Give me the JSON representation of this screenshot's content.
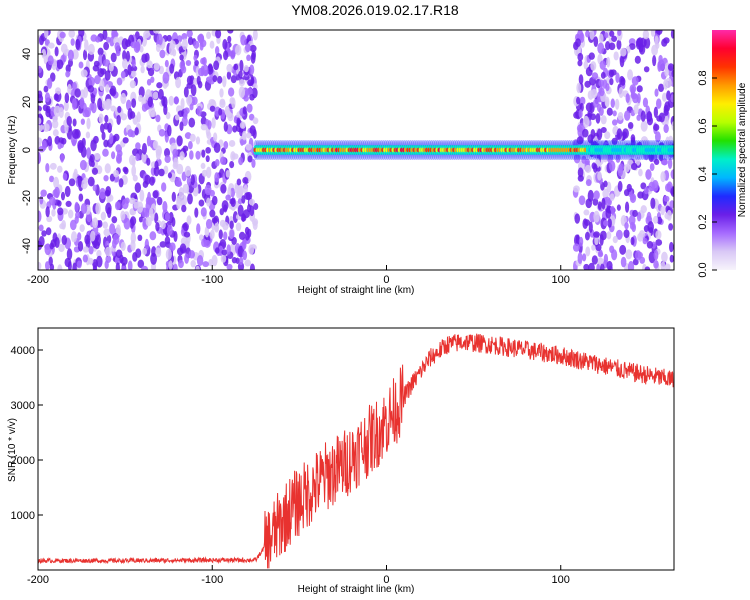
{
  "title": "YM08.2026.019.02.17.R18",
  "colors": {
    "snr_line": "#e8322f",
    "noise": "#7a2cf0",
    "colorbar": [
      "#f7f4fb",
      "#d9c8f6",
      "#a66bff",
      "#6a1fe8",
      "#1f2bff",
      "#00b7ff",
      "#00f0c8",
      "#22e000",
      "#b7ff00",
      "#ffee00",
      "#ff9b00",
      "#ff3300",
      "#ff0030",
      "#ff2aa8"
    ]
  },
  "chart_data": [
    {
      "type": "heatmap",
      "xlabel": "Height of straight line (km)",
      "ylabel": "Frequency (Hz)",
      "xlim": [
        -200,
        165
      ],
      "ylim": [
        -50,
        50
      ],
      "xticks": [
        -200,
        -100,
        0,
        100
      ],
      "yticks": [
        40,
        20,
        0,
        -20,
        -40
      ],
      "colorbar": {
        "label": "Normalized spectral amplitude",
        "range": [
          0,
          1
        ],
        "ticks": [
          "0.0",
          "0.2",
          "0.4",
          "0.6",
          "0.8"
        ]
      },
      "regions": [
        {
          "x_range": [
            -200,
            -75
          ],
          "description_level": "broadband noise",
          "amplitude": 0.12
        },
        {
          "x_range": [
            -75,
            115
          ],
          "frequency": 0,
          "amplitude": 0.85
        },
        {
          "x_range": [
            108,
            165
          ],
          "description_level": "broadband noise",
          "amplitude": 0.15
        }
      ]
    },
    {
      "type": "line",
      "xlabel": "Height of straight line (km)",
      "ylabel": "SNR (10 * v/v)",
      "xlim": [
        -200,
        165
      ],
      "ylim": [
        0,
        4400
      ],
      "xticks": [
        -200,
        -100,
        0,
        100
      ],
      "yticks": [
        1000,
        2000,
        3000,
        4000
      ],
      "series": [
        {
          "x": [
            -200,
            -150,
            -100,
            -75,
            -65,
            -55,
            -45,
            -35,
            -25,
            -15,
            -5,
            5,
            15,
            25,
            35,
            45,
            60,
            80,
            100,
            120,
            140,
            165
          ],
          "y": [
            170,
            170,
            180,
            180,
            650,
            1100,
            1400,
            1700,
            1900,
            2200,
            2500,
            2900,
            3400,
            3850,
            4100,
            4150,
            4100,
            4000,
            3900,
            3750,
            3600,
            3450
          ]
        }
      ]
    }
  ]
}
